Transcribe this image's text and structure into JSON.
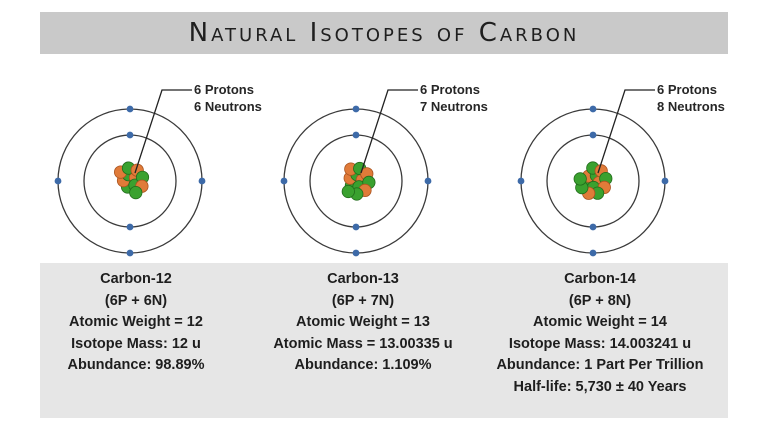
{
  "title": "Natural Isotopes of Carbon",
  "colors": {
    "proton": "#e07b39",
    "neutron": "#3aa12f",
    "electron": "#3d6aa8",
    "orbit": "#3a3a3a",
    "title_bg": "#c9c9c9",
    "info_bg": "#e6e6e6"
  },
  "isotopes": [
    {
      "label_protons": "6 Protons",
      "label_neutrons": "6 Neutrons",
      "name": "Carbon-12",
      "composition": "(6P + 6N)",
      "weight": "Atomic Weight = 12",
      "mass": "Isotope Mass: 12 u",
      "abundance": "Abundance: 98.89%",
      "halflife": ""
    },
    {
      "label_protons": "6 Protons",
      "label_neutrons": "7 Neutrons",
      "name": "Carbon-13",
      "composition": "(6P + 7N)",
      "weight": "Atomic Weight = 13",
      "mass": "Atomic Mass = 13.00335 u",
      "abundance": "Abundance: 1.109%",
      "halflife": ""
    },
    {
      "label_protons": "6 Protons",
      "label_neutrons": "8 Neutrons",
      "name": "Carbon-14",
      "composition": "(6P + 8N)",
      "weight": "Atomic Weight = 14",
      "mass": "Isotope Mass: 14.003241 u",
      "abundance": "Abundance: 1 Part Per Trillion",
      "halflife": "Half-life: 5,730 ± 40 Years"
    }
  ]
}
